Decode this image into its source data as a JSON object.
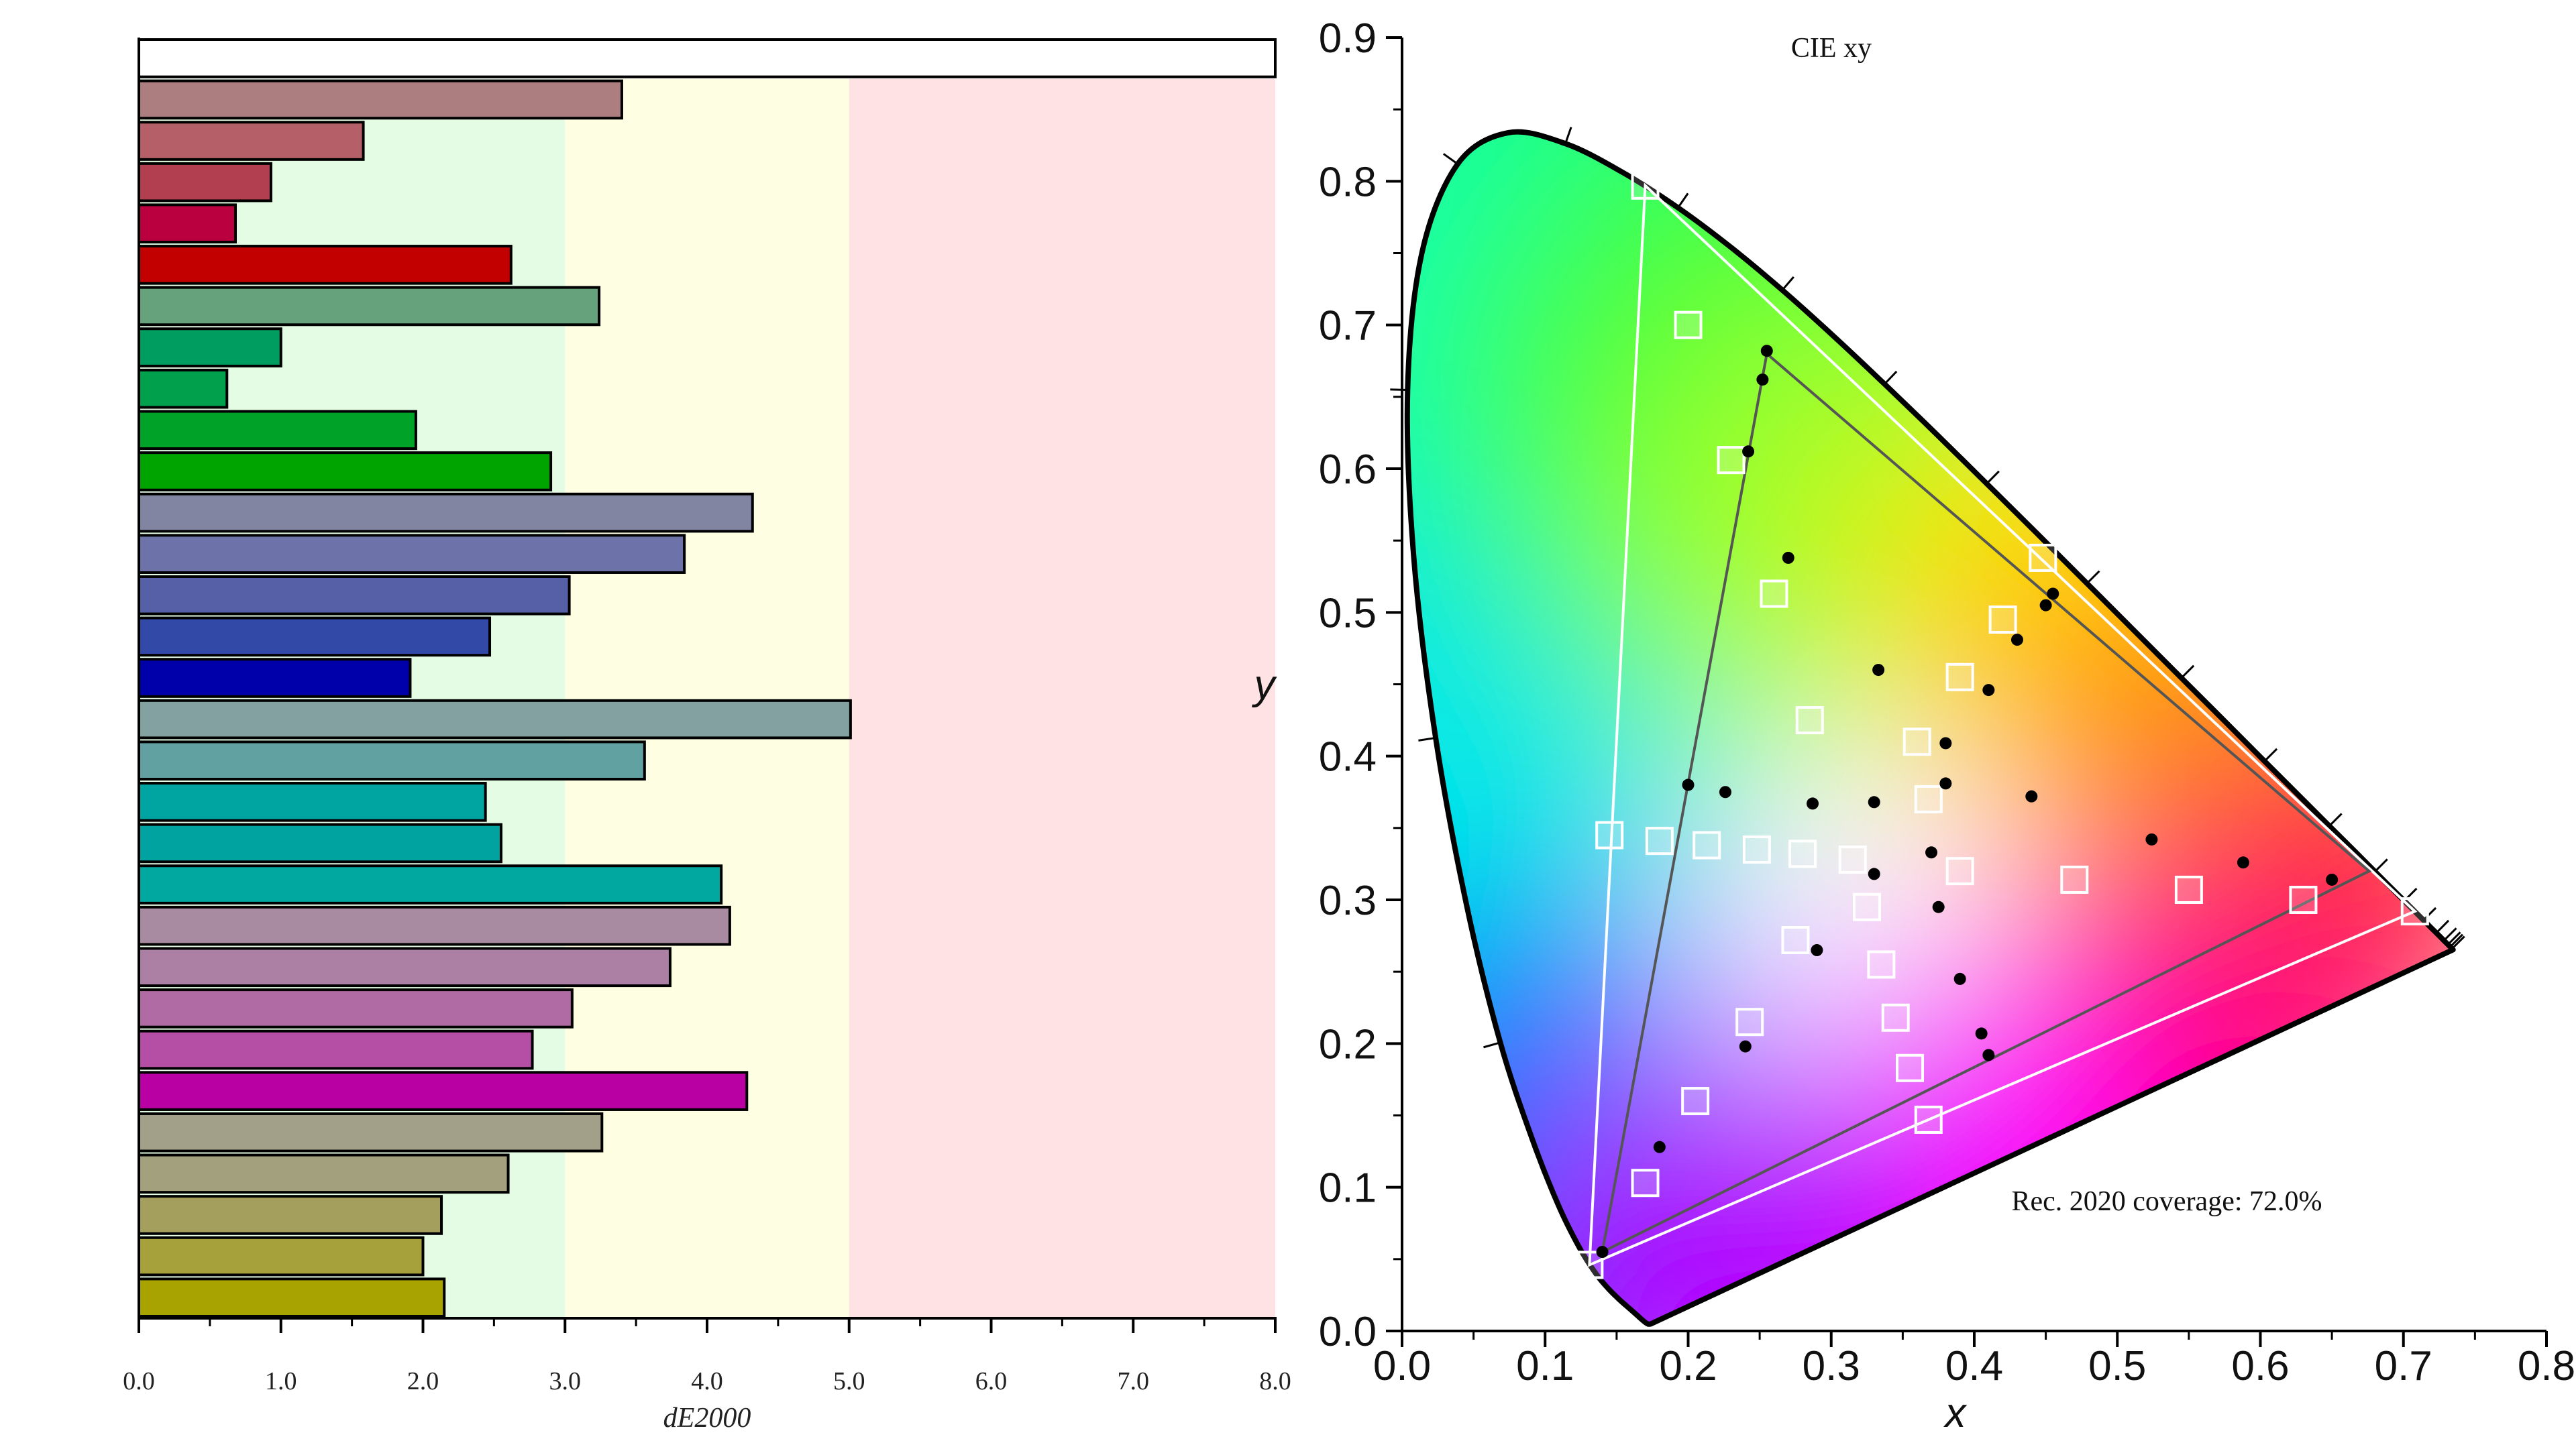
{
  "chart_data": [
    {
      "type": "bar",
      "orientation": "horizontal",
      "xlabel": "dE2000",
      "ylabel": "",
      "xlim": [
        0,
        8
      ],
      "x_ticks": [
        "0.0",
        "1.0",
        "2.0",
        "3.0",
        "4.0",
        "5.0",
        "6.0",
        "7.0",
        "8.0"
      ],
      "thresholds": [
        3.0,
        5.0
      ],
      "zone_colors": [
        "#e4fce4",
        "#fefee2",
        "#ffe2e4"
      ],
      "bars": [
        {
          "value": 8.0,
          "color": "#ffffff"
        },
        {
          "value": 3.4,
          "color": "#ad7e80"
        },
        {
          "value": 1.58,
          "color": "#b55f69"
        },
        {
          "value": 0.93,
          "color": "#b23f50"
        },
        {
          "value": 0.68,
          "color": "#bb0040"
        },
        {
          "value": 2.62,
          "color": "#c30000"
        },
        {
          "value": 3.24,
          "color": "#66a27b"
        },
        {
          "value": 1.0,
          "color": "#009d60"
        },
        {
          "value": 0.62,
          "color": "#00a04d"
        },
        {
          "value": 1.95,
          "color": "#00a227"
        },
        {
          "value": 2.9,
          "color": "#00a400"
        },
        {
          "value": 4.32,
          "color": "#8285a2"
        },
        {
          "value": 3.84,
          "color": "#6d73a9"
        },
        {
          "value": 3.03,
          "color": "#5560a6"
        },
        {
          "value": 2.47,
          "color": "#3349a8"
        },
        {
          "value": 1.91,
          "color": "#0000aa"
        },
        {
          "value": 5.01,
          "color": "#82a1a0"
        },
        {
          "value": 3.56,
          "color": "#62a1a1"
        },
        {
          "value": 2.44,
          "color": "#00a5a1"
        },
        {
          "value": 2.55,
          "color": "#00a39f"
        },
        {
          "value": 4.1,
          "color": "#00a8a0"
        },
        {
          "value": 4.16,
          "color": "#a98ba1"
        },
        {
          "value": 3.74,
          "color": "#ac80a5"
        },
        {
          "value": 3.05,
          "color": "#b06aa4"
        },
        {
          "value": 2.77,
          "color": "#b54fa6"
        },
        {
          "value": 4.28,
          "color": "#b901a3"
        },
        {
          "value": 3.26,
          "color": "#a3a08a"
        },
        {
          "value": 2.6,
          "color": "#a2a07d"
        },
        {
          "value": 2.13,
          "color": "#a59f5e"
        },
        {
          "value": 2.0,
          "color": "#a7a13c"
        },
        {
          "value": 2.15,
          "color": "#a8a300"
        }
      ]
    },
    {
      "type": "scatter",
      "title": "CIE xy",
      "xlabel": "x",
      "ylabel": "y",
      "xlim": [
        0,
        0.8
      ],
      "ylim": [
        0,
        0.9
      ],
      "x_ticks": [
        "0.0",
        "0.1",
        "0.2",
        "0.3",
        "0.4",
        "0.5",
        "0.6",
        "0.7",
        "0.8"
      ],
      "y_ticks": [
        "0.0",
        "0.1",
        "0.2",
        "0.3",
        "0.4",
        "0.5",
        "0.6",
        "0.7",
        "0.8",
        "0.9"
      ],
      "annotation": "Rec. 2020 coverage: 72.0%",
      "spectral_locus": [
        [
          0.1741,
          0.005
        ],
        [
          0.1738,
          0.0049
        ],
        [
          0.1736,
          0.0049
        ],
        [
          0.1733,
          0.0048
        ],
        [
          0.173,
          0.0048
        ],
        [
          0.1726,
          0.0048
        ],
        [
          0.1721,
          0.0048
        ],
        [
          0.1714,
          0.0051
        ],
        [
          0.1703,
          0.0058
        ],
        [
          0.1689,
          0.0069
        ],
        [
          0.1669,
          0.0086
        ],
        [
          0.1644,
          0.0109
        ],
        [
          0.1611,
          0.0138
        ],
        [
          0.1566,
          0.0177
        ],
        [
          0.151,
          0.0227
        ],
        [
          0.144,
          0.0297
        ],
        [
          0.1355,
          0.0399
        ],
        [
          0.1241,
          0.0578
        ],
        [
          0.1096,
          0.0868
        ],
        [
          0.0913,
          0.1327
        ],
        [
          0.0687,
          0.2007
        ],
        [
          0.0454,
          0.295
        ],
        [
          0.0235,
          0.4127
        ],
        [
          0.0082,
          0.5384
        ],
        [
          0.0039,
          0.6548
        ],
        [
          0.0139,
          0.7502
        ],
        [
          0.0389,
          0.812
        ],
        [
          0.0743,
          0.8338
        ],
        [
          0.1142,
          0.8262
        ],
        [
          0.1547,
          0.8059
        ],
        [
          0.1929,
          0.7816
        ],
        [
          0.2296,
          0.7543
        ],
        [
          0.2658,
          0.7243
        ],
        [
          0.3016,
          0.6923
        ],
        [
          0.3373,
          0.6589
        ],
        [
          0.3731,
          0.6245
        ],
        [
          0.4087,
          0.5896
        ],
        [
          0.4441,
          0.5547
        ],
        [
          0.4788,
          0.5202
        ],
        [
          0.5125,
          0.4866
        ],
        [
          0.5448,
          0.4544
        ],
        [
          0.5752,
          0.4242
        ],
        [
          0.6029,
          0.3965
        ],
        [
          0.627,
          0.3725
        ],
        [
          0.6482,
          0.3514
        ],
        [
          0.6658,
          0.334
        ],
        [
          0.6801,
          0.3197
        ],
        [
          0.6915,
          0.3083
        ],
        [
          0.7006,
          0.2993
        ],
        [
          0.7079,
          0.292
        ],
        [
          0.714,
          0.2859
        ],
        [
          0.719,
          0.2809
        ],
        [
          0.723,
          0.277
        ],
        [
          0.726,
          0.274
        ],
        [
          0.7283,
          0.2717
        ],
        [
          0.73,
          0.27
        ],
        [
          0.7311,
          0.2689
        ],
        [
          0.732,
          0.268
        ],
        [
          0.7327,
          0.2673
        ],
        [
          0.7334,
          0.2666
        ],
        [
          0.734,
          0.266
        ],
        [
          0.7344,
          0.2656
        ],
        [
          0.7347,
          0.2653
        ]
      ],
      "rec2020_gamut": [
        [
          0.708,
          0.292
        ],
        [
          0.17,
          0.797
        ],
        [
          0.131,
          0.046
        ]
      ],
      "measured_gamut": [
        [
          0.676,
          0.32
        ],
        [
          0.255,
          0.68
        ],
        [
          0.14,
          0.055
        ]
      ],
      "targets": [
        [
          0.17,
          0.797
        ],
        [
          0.2,
          0.7
        ],
        [
          0.23,
          0.606
        ],
        [
          0.26,
          0.513
        ],
        [
          0.285,
          0.425
        ],
        [
          0.145,
          0.345
        ],
        [
          0.18,
          0.341
        ],
        [
          0.213,
          0.338
        ],
        [
          0.248,
          0.335
        ],
        [
          0.28,
          0.332
        ],
        [
          0.315,
          0.328
        ],
        [
          0.325,
          0.295
        ],
        [
          0.335,
          0.255
        ],
        [
          0.345,
          0.218
        ],
        [
          0.355,
          0.183
        ],
        [
          0.368,
          0.147
        ],
        [
          0.275,
          0.272
        ],
        [
          0.243,
          0.215
        ],
        [
          0.205,
          0.16
        ],
        [
          0.17,
          0.103
        ],
        [
          0.131,
          0.046
        ],
        [
          0.36,
          0.41
        ],
        [
          0.368,
          0.37
        ],
        [
          0.39,
          0.455
        ],
        [
          0.42,
          0.495
        ],
        [
          0.448,
          0.538
        ],
        [
          0.39,
          0.32
        ],
        [
          0.47,
          0.314
        ],
        [
          0.55,
          0.307
        ],
        [
          0.63,
          0.3
        ],
        [
          0.708,
          0.292
        ]
      ],
      "measured": [
        [
          0.255,
          0.682
        ],
        [
          0.252,
          0.662
        ],
        [
          0.242,
          0.612
        ],
        [
          0.27,
          0.538
        ],
        [
          0.333,
          0.46
        ],
        [
          0.2,
          0.38
        ],
        [
          0.226,
          0.375
        ],
        [
          0.287,
          0.367
        ],
        [
          0.33,
          0.368
        ],
        [
          0.38,
          0.381
        ],
        [
          0.38,
          0.409
        ],
        [
          0.41,
          0.446
        ],
        [
          0.43,
          0.481
        ],
        [
          0.45,
          0.505
        ],
        [
          0.455,
          0.513
        ],
        [
          0.44,
          0.372
        ],
        [
          0.37,
          0.333
        ],
        [
          0.33,
          0.318
        ],
        [
          0.375,
          0.295
        ],
        [
          0.29,
          0.265
        ],
        [
          0.39,
          0.245
        ],
        [
          0.24,
          0.198
        ],
        [
          0.405,
          0.207
        ],
        [
          0.41,
          0.192
        ],
        [
          0.18,
          0.128
        ],
        [
          0.14,
          0.055
        ],
        [
          0.524,
          0.342
        ],
        [
          0.588,
          0.326
        ],
        [
          0.65,
          0.314
        ]
      ]
    }
  ]
}
